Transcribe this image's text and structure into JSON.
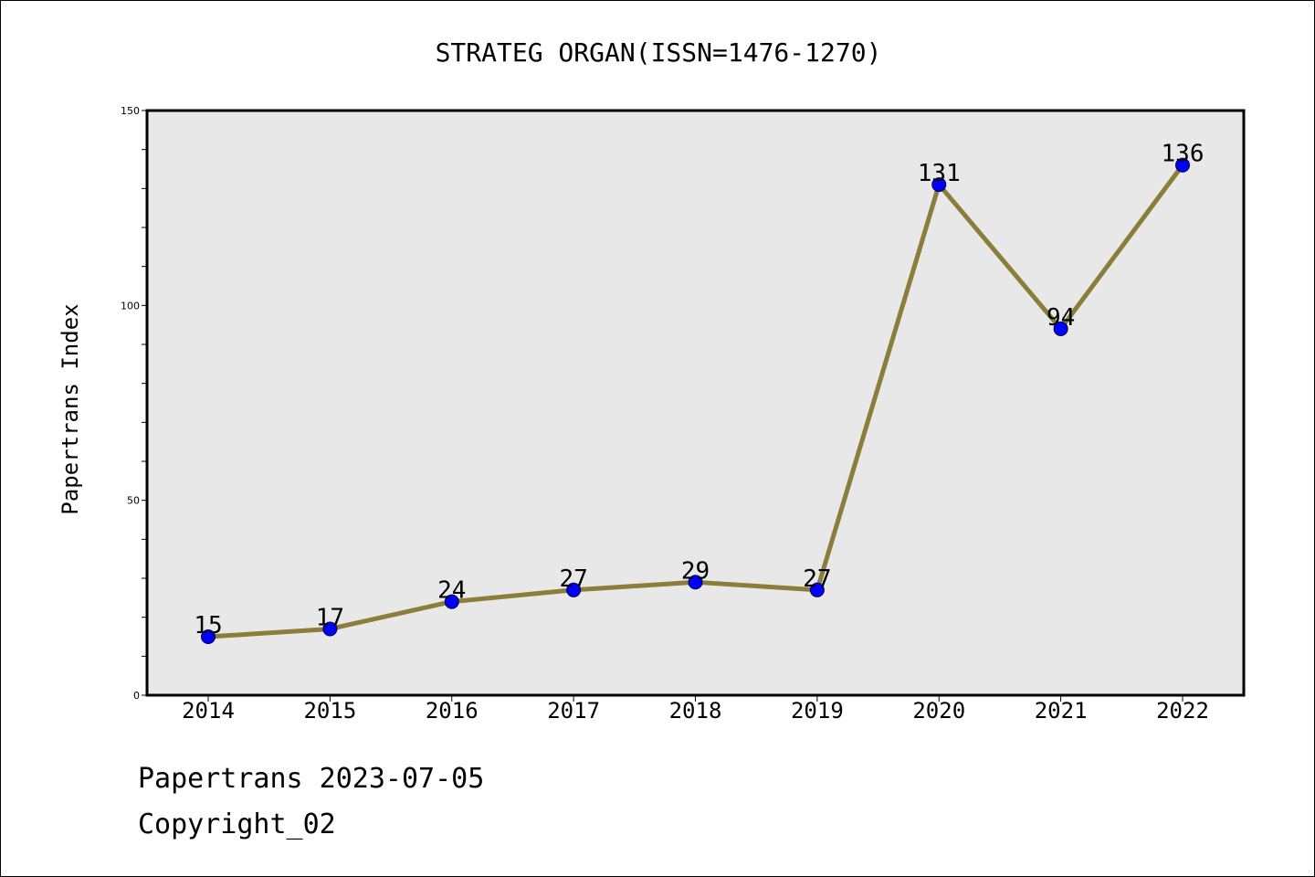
{
  "chart_data": {
    "type": "line",
    "title": "STRATEG ORGAN(ISSN=1476-1270)",
    "ylabel": "Papertrans Index",
    "xlabel": "",
    "categories": [
      "2014",
      "2015",
      "2016",
      "2017",
      "2018",
      "2019",
      "2020",
      "2021",
      "2022"
    ],
    "series": [
      {
        "values": [
          15,
          17,
          24,
          27,
          29,
          27,
          131,
          94,
          136
        ]
      }
    ],
    "data_labels": [
      "15",
      "17",
      "24",
      "27",
      "29",
      "27",
      "131",
      "94",
      "136"
    ],
    "ylim": [
      0,
      150
    ],
    "y_ticks": [
      "0",
      "50",
      "100",
      "150"
    ],
    "grid": false,
    "line_color": "#8b7d3a",
    "marker_color": "#0000ff",
    "plot_background": "#e8e8e8"
  },
  "footer": {
    "date_line": "Papertrans 2023-07-05",
    "copyright_line": "Copyright_02"
  }
}
